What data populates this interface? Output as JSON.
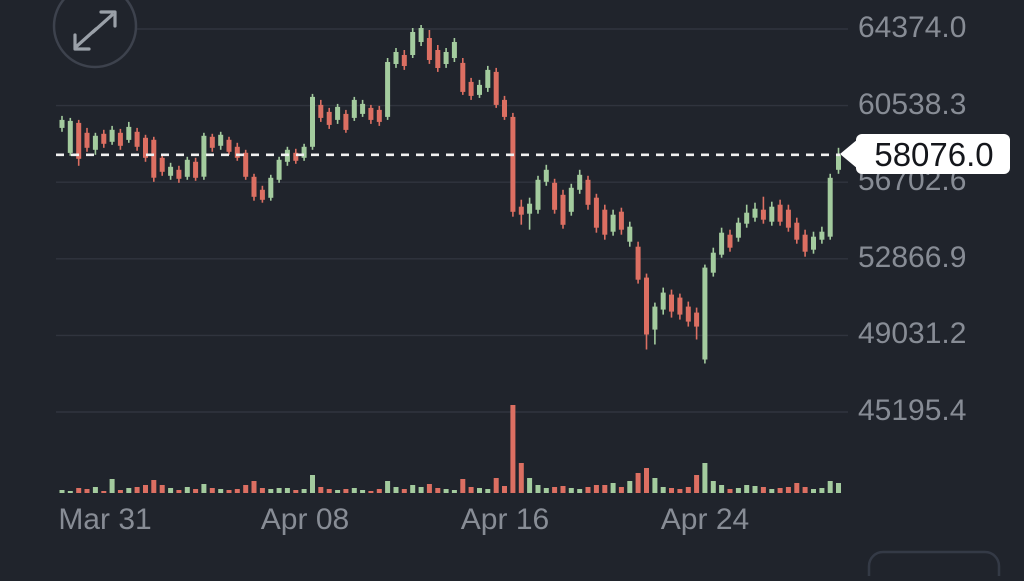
{
  "colors": {
    "background": "#20242c",
    "grid": "#30343e",
    "axis_text": "#878c95",
    "up": "#a3cb9e",
    "down": "#dc6f62",
    "dashed_line": "#f1f1f1",
    "tag_bg": "#ffffff",
    "tag_text": "#14161b",
    "icon": "#9aa0a8",
    "icon_circle": "#3d424d"
  },
  "expand_button": {
    "icon": "expand-arrows-icon"
  },
  "price_tag": {
    "label": "58076.0"
  },
  "chart_data": {
    "type": "candlestick",
    "title": "",
    "current_price": 58076.0,
    "y_axis": {
      "tick_labels": [
        "64374.0",
        "60538.3",
        "56702.6",
        "52866.9",
        "49031.2",
        "45195.4"
      ],
      "tick_values": [
        64374.0,
        60538.3,
        56702.6,
        52866.9,
        49031.2,
        45195.4
      ],
      "range_visible": [
        45195.4,
        64374.0
      ]
    },
    "x_axis": {
      "tick_labels": [
        "Mar 31",
        "Apr 08",
        "Apr 16",
        "Apr 24"
      ],
      "tick_candle_indices": [
        5,
        29,
        53,
        77
      ]
    },
    "grid": "horizontal-only",
    "legend": "none",
    "volume_pane": true,
    "candles_fields": [
      "open",
      "high",
      "low",
      "close",
      "volume_rel"
    ],
    "candles": [
      [
        59424,
        60024,
        59224,
        59824,
        3
      ],
      [
        58174,
        59924,
        58024,
        59774,
        2
      ],
      [
        59674,
        59824,
        57524,
        57874,
        5
      ],
      [
        59174,
        59424,
        58224,
        58424,
        4
      ],
      [
        58324,
        59174,
        58074,
        59024,
        6
      ],
      [
        59124,
        59324,
        58424,
        58624,
        2
      ],
      [
        58724,
        59524,
        58574,
        59324,
        14
      ],
      [
        59174,
        59374,
        58324,
        58524,
        3
      ],
      [
        58824,
        59724,
        58674,
        59474,
        5
      ],
      [
        59224,
        59424,
        58274,
        58474,
        6
      ],
      [
        58924,
        59074,
        57724,
        57924,
        8
      ],
      [
        58824,
        58974,
        56724,
        56924,
        13
      ],
      [
        57924,
        58074,
        57024,
        57224,
        8
      ],
      [
        57024,
        57674,
        56824,
        57474,
        5
      ],
      [
        57324,
        57524,
        56674,
        56874,
        3
      ],
      [
        56974,
        57974,
        56824,
        57824,
        6
      ],
      [
        57724,
        57924,
        56774,
        56924,
        4
      ],
      [
        56974,
        59174,
        56824,
        59024,
        9
      ],
      [
        58974,
        59124,
        58224,
        58424,
        5
      ],
      [
        58524,
        59224,
        58324,
        59074,
        4
      ],
      [
        58824,
        58974,
        58074,
        58224,
        3
      ],
      [
        58474,
        58674,
        57774,
        57924,
        4
      ],
      [
        58174,
        58324,
        56824,
        56974,
        8
      ],
      [
        56974,
        57124,
        55774,
        55974,
        12
      ],
      [
        56324,
        56524,
        55674,
        55824,
        5
      ],
      [
        55924,
        57074,
        55774,
        56924,
        4
      ],
      [
        56824,
        57974,
        56674,
        57824,
        5
      ],
      [
        57724,
        58474,
        57524,
        58324,
        5
      ],
      [
        58174,
        58374,
        57624,
        57774,
        3
      ],
      [
        57924,
        58624,
        57774,
        58474,
        4
      ],
      [
        58474,
        61124,
        58324,
        60974,
        18
      ],
      [
        60574,
        60824,
        59724,
        59924,
        6
      ],
      [
        60224,
        60424,
        59374,
        59574,
        4
      ],
      [
        59824,
        60624,
        59624,
        60474,
        3
      ],
      [
        60124,
        60324,
        59174,
        59324,
        4
      ],
      [
        59924,
        60974,
        59774,
        60824,
        5
      ],
      [
        60124,
        60824,
        59974,
        60624,
        3
      ],
      [
        60424,
        60574,
        59624,
        59824,
        2
      ],
      [
        60324,
        60524,
        59524,
        59724,
        4
      ],
      [
        59974,
        62924,
        59824,
        62724,
        12
      ],
      [
        62624,
        63424,
        62424,
        63224,
        6
      ],
      [
        63074,
        63324,
        62324,
        62524,
        4
      ],
      [
        63074,
        64424,
        62924,
        64224,
        8
      ],
      [
        63724,
        64574,
        63524,
        64424,
        6
      ],
      [
        63924,
        64324,
        62624,
        62824,
        9
      ],
      [
        63324,
        63574,
        62224,
        62424,
        5
      ],
      [
        62624,
        63424,
        62424,
        63224,
        4
      ],
      [
        62924,
        63924,
        62724,
        63724,
        3
      ],
      [
        62674,
        62924,
        61074,
        61224,
        14
      ],
      [
        61724,
        61924,
        60824,
        61024,
        6
      ],
      [
        61074,
        61824,
        60924,
        61574,
        5
      ],
      [
        61424,
        62524,
        61224,
        62324,
        4
      ],
      [
        62224,
        62424,
        60424,
        60574,
        15
      ],
      [
        60824,
        61024,
        59824,
        59974,
        7
      ],
      [
        59974,
        60174,
        54974,
        55224,
        88
      ],
      [
        55474,
        55824,
        54574,
        55074,
        30
      ],
      [
        55124,
        55924,
        54324,
        55624,
        15
      ],
      [
        55324,
        57024,
        55124,
        56824,
        8
      ],
      [
        56724,
        57574,
        56524,
        57324,
        5
      ],
      [
        56674,
        56874,
        55124,
        55324,
        6
      ],
      [
        56074,
        56324,
        54374,
        54574,
        7
      ],
      [
        55224,
        56624,
        55024,
        56424,
        5
      ],
      [
        56324,
        57324,
        56124,
        57074,
        4
      ],
      [
        56824,
        57024,
        55324,
        55574,
        6
      ],
      [
        55924,
        56124,
        54174,
        54424,
        8
      ],
      [
        55324,
        55574,
        53824,
        54074,
        8
      ],
      [
        54224,
        55324,
        54024,
        55074,
        10
      ],
      [
        55224,
        55424,
        54074,
        54324,
        6
      ],
      [
        53724,
        54724,
        53474,
        54474,
        12
      ],
      [
        53474,
        53724,
        51624,
        51824,
        20
      ],
      [
        51924,
        52124,
        48324,
        49074,
        25
      ],
      [
        49324,
        50674,
        48574,
        50474,
        15
      ],
      [
        50324,
        51424,
        50074,
        51174,
        6
      ],
      [
        51074,
        51324,
        49924,
        50224,
        5
      ],
      [
        50924,
        51124,
        49824,
        50074,
        4
      ],
      [
        50474,
        50724,
        49474,
        49724,
        6
      ],
      [
        50174,
        50424,
        48824,
        49474,
        18
      ],
      [
        47824,
        52574,
        47624,
        52424,
        30
      ],
      [
        52174,
        53424,
        51974,
        53174,
        12
      ],
      [
        53074,
        54424,
        52924,
        54174,
        8
      ],
      [
        54074,
        54324,
        53224,
        53424,
        4
      ],
      [
        53924,
        54924,
        53724,
        54674,
        5
      ],
      [
        54624,
        55574,
        54424,
        55174,
        8
      ],
      [
        54924,
        55674,
        54724,
        55374,
        7
      ],
      [
        55324,
        55974,
        54624,
        54824,
        6
      ],
      [
        54724,
        55724,
        54524,
        55474,
        4
      ],
      [
        55574,
        55824,
        54524,
        54724,
        5
      ],
      [
        55324,
        55574,
        54224,
        54424,
        6
      ],
      [
        54674,
        54924,
        53624,
        53824,
        10
      ],
      [
        54074,
        54324,
        52974,
        53224,
        6
      ],
      [
        53324,
        54224,
        53124,
        53974,
        4
      ],
      [
        53824,
        54474,
        53624,
        54224,
        5
      ],
      [
        53974,
        57124,
        53824,
        56924,
        12
      ],
      [
        57324,
        58424,
        57124,
        58076,
        10
      ]
    ]
  }
}
